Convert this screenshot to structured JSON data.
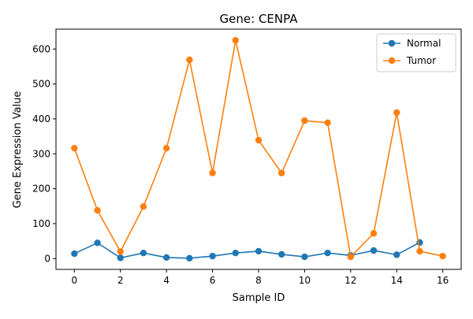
{
  "chart_data": {
    "type": "line",
    "title": "Gene: CENPA",
    "xlabel": "Sample ID",
    "ylabel": "Gene Expression Value",
    "xlim": [
      -0.8,
      16.8
    ],
    "ylim": [
      -31,
      657
    ],
    "xticks": [
      0,
      2,
      4,
      6,
      8,
      10,
      12,
      14,
      16
    ],
    "yticks": [
      0,
      100,
      200,
      300,
      400,
      500,
      600
    ],
    "legend_position": "top-right",
    "grid": false,
    "series": [
      {
        "name": "Normal",
        "color": "#1f77b4",
        "x": [
          0,
          1,
          2,
          3,
          4,
          5,
          6,
          7,
          8,
          9,
          10,
          11,
          12,
          13,
          14,
          15
        ],
        "values": [
          14,
          45,
          2,
          16,
          3,
          1,
          7,
          16,
          21,
          12,
          5,
          16,
          9,
          23,
          11,
          46
        ]
      },
      {
        "name": "Tumor",
        "color": "#ff7f0e",
        "x": [
          0,
          1,
          2,
          3,
          4,
          5,
          6,
          7,
          8,
          9,
          10,
          11,
          12,
          13,
          14,
          15,
          16
        ],
        "values": [
          316,
          138,
          20,
          149,
          316,
          569,
          245,
          625,
          339,
          245,
          395,
          389,
          5,
          72,
          418,
          21,
          7
        ]
      }
    ]
  }
}
